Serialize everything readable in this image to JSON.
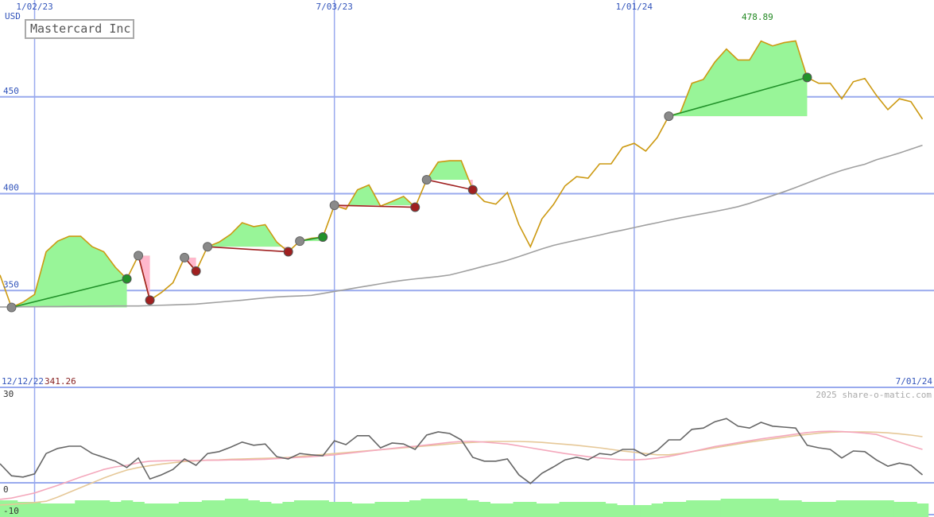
{
  "chart_data": {
    "type": "line",
    "title": "Mastercard Inc",
    "y_label": "USD",
    "source": "2025 share-o-matic.com",
    "max": 478.89,
    "min": 341.26,
    "max_color": "#228822",
    "min_color": "#882222",
    "grid": true,
    "grid_color": "#99aaee",
    "label_color": "#3355bb",
    "xlim": [
      "12/12/22",
      "7/01/24"
    ],
    "xticks": [
      "1/02/23",
      "7/03/23",
      "1/01/24"
    ],
    "ylim": [
      300,
      500
    ],
    "yticks": [
      350,
      400,
      450
    ],
    "y2lim": [
      -10.75,
      30
    ],
    "y2ticks": [
      -10,
      0,
      30
    ],
    "x": [
      "12/12/22",
      "12/19/22",
      "12/26/22",
      "1/02/23",
      "1/09/23",
      "1/16/23",
      "1/23/23",
      "1/30/23",
      "2/06/23",
      "2/13/23",
      "2/20/23",
      "2/27/23",
      "3/06/23",
      "3/13/23",
      "3/20/23",
      "3/27/23",
      "4/03/23",
      "4/10/23",
      "4/17/23",
      "4/24/23",
      "5/01/23",
      "5/08/23",
      "5/15/23",
      "5/22/23",
      "5/29/23",
      "6/05/23",
      "6/12/23",
      "6/19/23",
      "6/26/23",
      "7/03/23",
      "7/10/23",
      "7/17/23",
      "7/24/23",
      "7/31/23",
      "8/07/23",
      "8/14/23",
      "8/21/23",
      "8/28/23",
      "9/04/23",
      "9/11/23",
      "9/18/23",
      "9/25/23",
      "10/02/23",
      "10/09/23",
      "10/16/23",
      "10/23/23",
      "10/30/23",
      "11/06/23",
      "11/13/23",
      "11/20/23",
      "11/27/23",
      "12/04/23",
      "12/11/23",
      "12/18/23",
      "12/25/23",
      "1/01/24",
      "1/08/24",
      "1/15/24",
      "1/22/24",
      "1/29/24",
      "2/05/24",
      "2/12/24",
      "2/19/24",
      "2/26/24",
      "3/04/24",
      "3/11/24",
      "3/18/24",
      "3/25/24",
      "4/01/24",
      "4/08/24",
      "4/15/24",
      "4/22/24",
      "4/29/24",
      "5/06/24",
      "5/13/24",
      "5/20/24",
      "5/27/24",
      "6/03/24",
      "6/10/24",
      "6/17/24",
      "6/24/24"
    ],
    "series": [
      {
        "color": "#cc9911",
        "values": [
          358,
          341.26,
          344,
          348,
          370,
          375.5,
          378,
          378,
          372.6,
          370,
          362,
          356,
          368,
          345,
          349,
          354,
          367,
          360,
          372.6,
          375,
          379,
          385,
          383,
          384,
          375,
          370,
          375.5,
          377,
          377.6,
          394,
          392,
          402,
          404.5,
          393.6,
          396,
          398.6,
          393,
          407.2,
          416.3,
          417,
          417,
          402,
          396,
          394.6,
          400.6,
          384,
          372.6,
          387,
          394.4,
          404,
          408.8,
          408,
          415.4,
          415.4,
          424,
          426,
          422,
          429,
          440,
          441.8,
          457,
          459,
          468,
          474.7,
          469,
          469,
          478.8,
          476.3,
          478,
          478.89,
          460,
          457,
          457,
          449,
          457.8,
          459.5,
          450.8,
          443.4,
          449,
          447.5,
          438.5
        ]
      },
      {
        "color": "#a0a0a0",
        "values": [
          341.5,
          341.5,
          341.6,
          341.6,
          341.7,
          341.7,
          341.8,
          341.8,
          341.9,
          341.9,
          342,
          342,
          342,
          342.2,
          342.4,
          342.6,
          342.8,
          343,
          343.5,
          344,
          344.5,
          345,
          345.6,
          346.2,
          346.7,
          347,
          347.2,
          347.5,
          348.5,
          349.5,
          350.5,
          351.5,
          352.5,
          353.5,
          354.5,
          355.3,
          356,
          356.6,
          357.2,
          358,
          359.5,
          361,
          362.6,
          364,
          365.6,
          367.5,
          369.5,
          371.5,
          373.3,
          374.7,
          376,
          377.3,
          378.6,
          380,
          381.2,
          382.5,
          383.8,
          385,
          386.3,
          387.5,
          388.6,
          389.7,
          390.8,
          392,
          393.3,
          395,
          397,
          399,
          401,
          403.2,
          405.5,
          407.8,
          410,
          412,
          413.7,
          415.2,
          417.5,
          419.2,
          421,
          423,
          425
        ]
      },
      {
        "color": "#98f598",
        "type": "bar",
        "axis": "y2",
        "values": [
          -5.5,
          -5.5,
          -6,
          -6,
          -6.5,
          -6.5,
          -6.5,
          -5.5,
          -5.5,
          -5.5,
          -6,
          -5.5,
          -6,
          -6.5,
          -6.5,
          -6.5,
          -6,
          -6,
          -5.5,
          -5.5,
          -5,
          -5,
          -5.5,
          -6,
          -6.5,
          -6,
          -5.5,
          -5.5,
          -5.5,
          -6,
          -6,
          -6.5,
          -6.5,
          -6,
          -6,
          -6,
          -5.5,
          -5,
          -5,
          -5,
          -5,
          -5.5,
          -6,
          -6.5,
          -6.5,
          -6,
          -6,
          -6.5,
          -6.5,
          -6,
          -6,
          -6,
          -6,
          -6.5,
          -7,
          -7,
          -7,
          -6.5,
          -6,
          -6,
          -5.5,
          -5.5,
          -5.5,
          -5,
          -5,
          -5,
          -5,
          -5,
          -5.5,
          -5.5,
          -6,
          -6,
          -6,
          -5.5,
          -5.5,
          -5.5,
          -5.5,
          -5.5,
          -6,
          -6,
          -6.5
        ]
      },
      {
        "color": "#e6c898",
        "axis": "y2",
        "values": [
          -7,
          -6.8,
          -6.5,
          -6.2,
          -5.8,
          -4.5,
          -3,
          -1.5,
          0,
          1.5,
          2.8,
          4,
          4.8,
          5.4,
          5.9,
          6.3,
          6.7,
          6.9,
          7.1,
          7.2,
          7.4,
          7.5,
          7.6,
          7.7,
          7.8,
          8,
          8.3,
          8.6,
          8.9,
          9.2,
          9.5,
          9.8,
          10.1,
          10.4,
          10.7,
          11,
          11.3,
          11.6,
          11.9,
          12.2,
          12.5,
          12.7,
          12.9,
          13,
          13,
          13,
          12.9,
          12.7,
          12.4,
          12.1,
          11.8,
          11.4,
          11,
          10.5,
          10,
          9.6,
          9.2,
          8.8,
          8.8,
          9.2,
          9.8,
          10.4,
          11,
          11.6,
          12.2,
          12.8,
          13.3,
          13.8,
          14.3,
          14.8,
          15.2,
          15.6,
          15.9,
          16,
          16,
          16,
          15.9,
          15.7,
          15.4,
          15,
          14.5
        ]
      },
      {
        "color": "#f4a8bc",
        "axis": "y2",
        "values": [
          -5.2,
          -4.8,
          -4,
          -3.2,
          -2,
          -0.8,
          0.5,
          1.8,
          3,
          4.2,
          5,
          5.5,
          6.3,
          6.8,
          6.9,
          7,
          7,
          7,
          7.1,
          7.1,
          7.2,
          7.2,
          7.3,
          7.4,
          7.6,
          7.8,
          8,
          8.2,
          8.5,
          8.8,
          9.2,
          9.6,
          10,
          10.4,
          10.8,
          11.2,
          11.5,
          11.9,
          12.3,
          12.7,
          13,
          13,
          12.8,
          12.5,
          12.2,
          11.6,
          11,
          10.4,
          9.8,
          9.2,
          8.7,
          8.2,
          7.8,
          7.5,
          7.2,
          7.2,
          7.4,
          7.8,
          8.3,
          9,
          9.8,
          10.6,
          11.4,
          12,
          12.6,
          13.2,
          13.8,
          14.3,
          14.8,
          15.3,
          15.8,
          16.1,
          16.2,
          16.1,
          15.9,
          15.6,
          15.2,
          14,
          12.8,
          11.6,
          10.5
        ]
      },
      {
        "color": "#666666",
        "axis": "y2",
        "values": [
          6,
          2.2,
          1.8,
          2.8,
          9.2,
          10.8,
          11.5,
          11.5,
          9.2,
          8,
          6.8,
          4.8,
          7.8,
          1.2,
          2.5,
          4.2,
          7.5,
          5.5,
          9.2,
          9.8,
          11.2,
          12.8,
          11.8,
          12.2,
          8.2,
          7.5,
          9.2,
          8.8,
          8.5,
          13.2,
          12,
          14.8,
          14.8,
          11,
          12.5,
          12.2,
          10.5,
          15,
          16,
          15.5,
          13.5,
          8,
          6.8,
          6.8,
          7.5,
          2.5,
          -0.2,
          3,
          5,
          7.2,
          8,
          7.2,
          9.2,
          8.8,
          10.5,
          10.5,
          8.5,
          10.2,
          13.5,
          13.5,
          16.8,
          17.2,
          19.2,
          20.2,
          17.8,
          17.2,
          19,
          17.8,
          17.5,
          17.2,
          11.8,
          11,
          10.5,
          7.8,
          10,
          9.8,
          7.2,
          5.2,
          6.2,
          5.5,
          2.5
        ]
      }
    ],
    "trades": [
      {
        "entry": "12/19/22",
        "exit": "2/27/23"
      },
      {
        "entry": "3/06/23",
        "exit": "3/13/23"
      },
      {
        "entry": "4/03/23",
        "exit": "4/10/23"
      },
      {
        "entry": "4/17/23",
        "exit": "6/05/23"
      },
      {
        "entry": "6/12/23",
        "exit": "6/26/23"
      },
      {
        "entry": "7/03/23",
        "exit": "8/21/23"
      },
      {
        "entry": "8/28/23",
        "exit": "9/25/23"
      },
      {
        "entry": "1/22/24",
        "exit": "4/15/24"
      }
    ],
    "entry_color": "#8a8a8a",
    "win_color": "#22922a",
    "loss_color": "#a02020",
    "win_fill": "#98f598",
    "loss_fill": "#ffb8cc"
  }
}
